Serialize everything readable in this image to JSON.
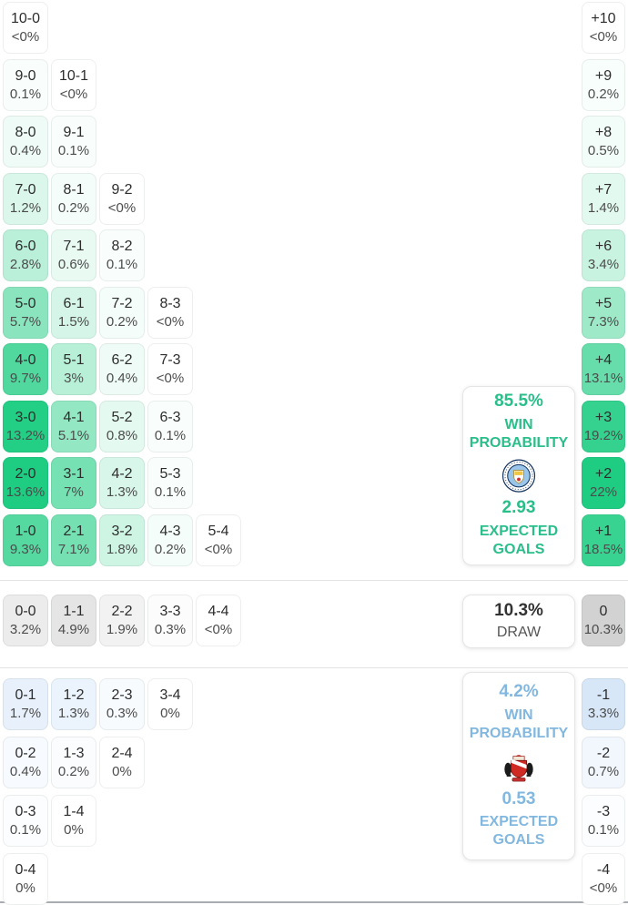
{
  "matrix": {
    "home_rows": [
      {
        "cells": [
          {
            "score": "10-0",
            "pct": "<0%"
          }
        ]
      },
      {
        "cells": [
          {
            "score": "9-0",
            "pct": "0.1%"
          },
          {
            "score": "10-1",
            "pct": "<0%"
          }
        ]
      },
      {
        "cells": [
          {
            "score": "8-0",
            "pct": "0.4%"
          },
          {
            "score": "9-1",
            "pct": "0.1%"
          }
        ]
      },
      {
        "cells": [
          {
            "score": "7-0",
            "pct": "1.2%"
          },
          {
            "score": "8-1",
            "pct": "0.2%"
          },
          {
            "score": "9-2",
            "pct": "<0%"
          }
        ]
      },
      {
        "cells": [
          {
            "score": "6-0",
            "pct": "2.8%"
          },
          {
            "score": "7-1",
            "pct": "0.6%"
          },
          {
            "score": "8-2",
            "pct": "0.1%"
          }
        ]
      },
      {
        "cells": [
          {
            "score": "5-0",
            "pct": "5.7%"
          },
          {
            "score": "6-1",
            "pct": "1.5%"
          },
          {
            "score": "7-2",
            "pct": "0.2%"
          },
          {
            "score": "8-3",
            "pct": "<0%"
          }
        ]
      },
      {
        "cells": [
          {
            "score": "4-0",
            "pct": "9.7%"
          },
          {
            "score": "5-1",
            "pct": "3%"
          },
          {
            "score": "6-2",
            "pct": "0.4%"
          },
          {
            "score": "7-3",
            "pct": "<0%"
          }
        ]
      },
      {
        "cells": [
          {
            "score": "3-0",
            "pct": "13.2%"
          },
          {
            "score": "4-1",
            "pct": "5.1%"
          },
          {
            "score": "5-2",
            "pct": "0.8%"
          },
          {
            "score": "6-3",
            "pct": "0.1%"
          }
        ]
      },
      {
        "cells": [
          {
            "score": "2-0",
            "pct": "13.6%"
          },
          {
            "score": "3-1",
            "pct": "7%"
          },
          {
            "score": "4-2",
            "pct": "1.3%"
          },
          {
            "score": "5-3",
            "pct": "0.1%"
          }
        ]
      },
      {
        "cells": [
          {
            "score": "1-0",
            "pct": "9.3%"
          },
          {
            "score": "2-1",
            "pct": "7.1%"
          },
          {
            "score": "3-2",
            "pct": "1.8%"
          },
          {
            "score": "4-3",
            "pct": "0.2%"
          },
          {
            "score": "5-4",
            "pct": "<0%"
          }
        ]
      }
    ],
    "draw_row": {
      "cells": [
        {
          "score": "0-0",
          "pct": "3.2%"
        },
        {
          "score": "1-1",
          "pct": "4.9%"
        },
        {
          "score": "2-2",
          "pct": "1.9%"
        },
        {
          "score": "3-3",
          "pct": "0.3%"
        },
        {
          "score": "4-4",
          "pct": "<0%"
        }
      ]
    },
    "away_rows": [
      {
        "cells": [
          {
            "score": "0-1",
            "pct": "1.7%"
          },
          {
            "score": "1-2",
            "pct": "1.3%"
          },
          {
            "score": "2-3",
            "pct": "0.3%"
          },
          {
            "score": "3-4",
            "pct": "0%"
          }
        ]
      },
      {
        "cells": [
          {
            "score": "0-2",
            "pct": "0.4%"
          },
          {
            "score": "1-3",
            "pct": "0.2%"
          },
          {
            "score": "2-4",
            "pct": "0%"
          }
        ]
      },
      {
        "cells": [
          {
            "score": "0-3",
            "pct": "0.1%"
          },
          {
            "score": "1-4",
            "pct": "0%"
          }
        ]
      },
      {
        "cells": [
          {
            "score": "0-4",
            "pct": "0%"
          }
        ]
      }
    ],
    "diff_home": [
      {
        "label": "+10",
        "pct": "<0%"
      },
      {
        "label": "+9",
        "pct": "0.2%"
      },
      {
        "label": "+8",
        "pct": "0.5%"
      },
      {
        "label": "+7",
        "pct": "1.4%"
      },
      {
        "label": "+6",
        "pct": "3.4%"
      },
      {
        "label": "+5",
        "pct": "7.3%"
      },
      {
        "label": "+4",
        "pct": "13.1%"
      },
      {
        "label": "+3",
        "pct": "19.2%"
      },
      {
        "label": "+2",
        "pct": "22%"
      },
      {
        "label": "+1",
        "pct": "18.5%"
      }
    ],
    "diff_draw": {
      "label": "0",
      "pct": "10.3%"
    },
    "diff_away": [
      {
        "label": "-1",
        "pct": "3.3%"
      },
      {
        "label": "-2",
        "pct": "0.7%"
      },
      {
        "label": "-3",
        "pct": "0.1%"
      },
      {
        "label": "-4",
        "pct": "<0%"
      }
    ]
  },
  "summary": {
    "home": {
      "win_pct": "85.5%",
      "win_label": "WIN PROBABILITY",
      "expected_goals": "2.93",
      "eg_label": "EXPECTED GOALS",
      "badge_icon": "manchester-city-badge"
    },
    "draw": {
      "pct": "10.3%",
      "label": "DRAW"
    },
    "away": {
      "win_pct": "4.2%",
      "win_label": "WIN PROBABILITY",
      "expected_goals": "0.53",
      "eg_label": "EXPECTED GOALS",
      "badge_icon": "sunderland-badge"
    }
  },
  "colors": {
    "home_accent": "#2abf8a",
    "away_accent": "#82b8e0",
    "home_cell_base": "#1ecd82",
    "draw_cell_base": "#d2d2d2",
    "away_cell_base": "#d7e7f8"
  }
}
